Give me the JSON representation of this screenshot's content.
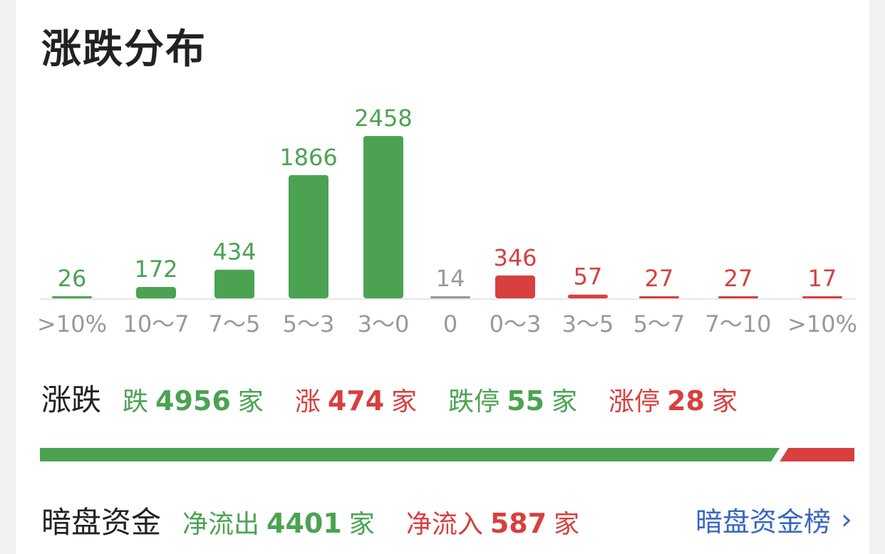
{
  "title": "涨跌分布",
  "colors": {
    "fall": "#4ba352",
    "rise": "#d7403f",
    "flat": "#999999",
    "link": "#3a67c2"
  },
  "chart_data": {
    "type": "bar",
    "title": "涨跌分布",
    "categories": [
      ">10%",
      "10～7",
      "7～5",
      "5～3",
      "3～0",
      "0",
      "0～3",
      "3～5",
      "5～7",
      "7～10",
      ">10%"
    ],
    "values": [
      26,
      172,
      434,
      1866,
      2458,
      14,
      346,
      57,
      27,
      27,
      17
    ],
    "series_colors": [
      "fall",
      "fall",
      "fall",
      "fall",
      "fall",
      "flat",
      "rise",
      "rise",
      "rise",
      "rise",
      "rise"
    ]
  },
  "summary": {
    "label": "涨跌",
    "fall": {
      "prefix": "跌",
      "value": "4956",
      "unit": "家"
    },
    "rise": {
      "prefix": "涨",
      "value": "474",
      "unit": "家"
    },
    "limit_down": {
      "prefix": "跌停",
      "value": "55",
      "unit": "家"
    },
    "limit_up": {
      "prefix": "涨停",
      "value": "28",
      "unit": "家"
    }
  },
  "dark_pool": {
    "label": "暗盘资金",
    "outflow": {
      "prefix": "净流出",
      "value": "4401",
      "unit": "家"
    },
    "inflow": {
      "prefix": "净流入",
      "value": "587",
      "unit": "家"
    },
    "link_label": "暗盘资金榜"
  }
}
